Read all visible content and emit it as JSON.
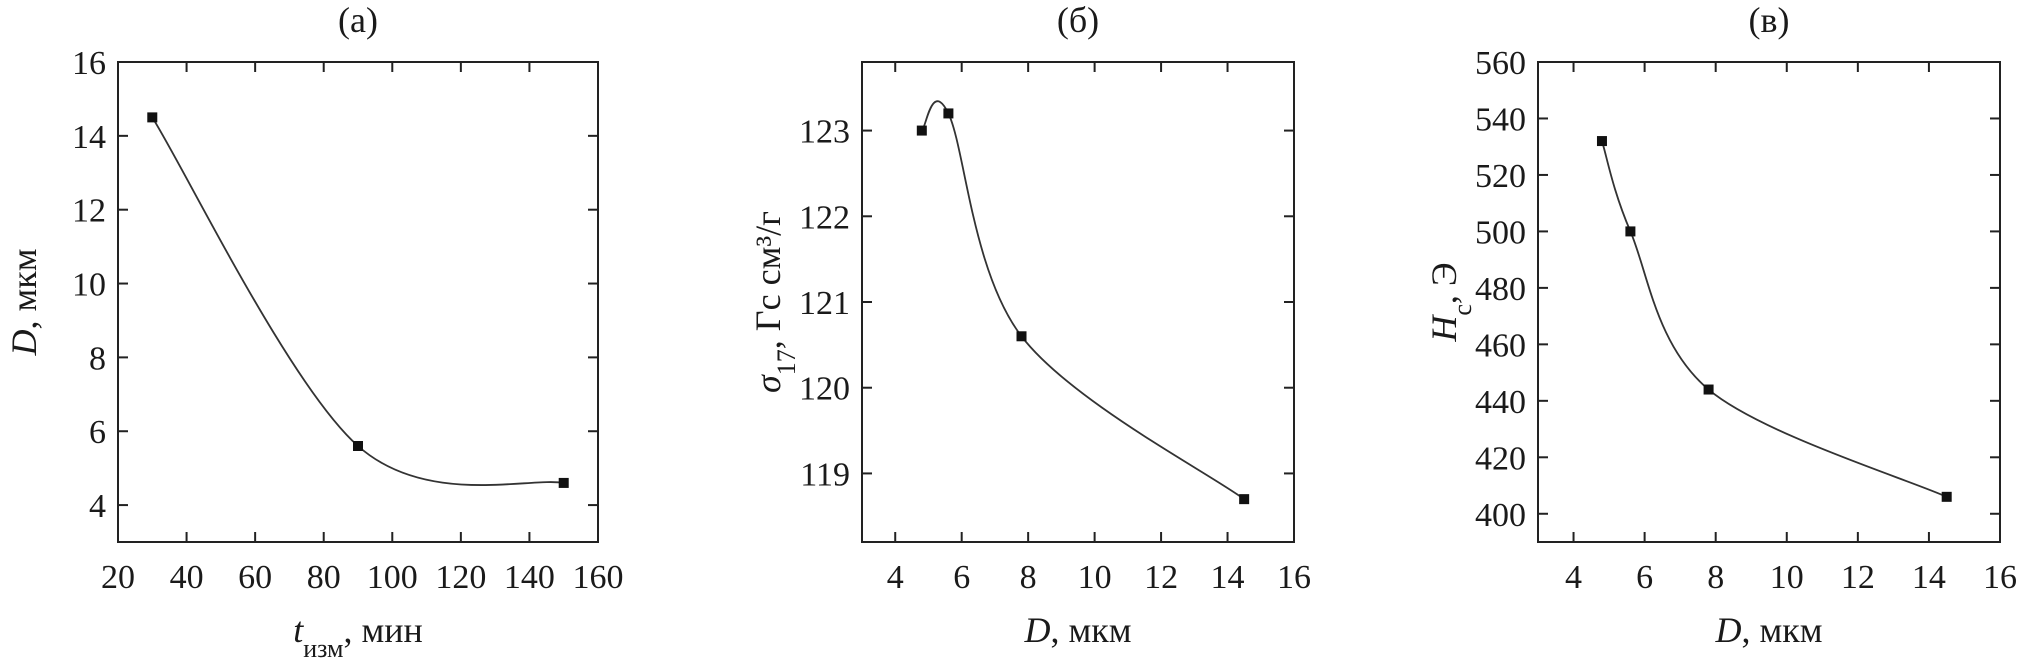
{
  "chart_data": [
    {
      "type": "line",
      "title": "(a)",
      "xlabel": {
        "main": "t",
        "sub": "изм",
        "rest": ", мин"
      },
      "ylabel": {
        "main": "D",
        "sub": "",
        "rest": ", мкм"
      },
      "xlim": [
        20,
        160
      ],
      "ylim": [
        3,
        16
      ],
      "xticks": [
        20,
        40,
        60,
        80,
        100,
        120,
        140,
        160
      ],
      "yticks": [
        4,
        6,
        8,
        10,
        12,
        14,
        16
      ],
      "x": [
        30,
        90,
        150
      ],
      "y": [
        14.5,
        5.6,
        4.6
      ],
      "grid": false
    },
    {
      "type": "line",
      "title": "(б)",
      "xlabel": {
        "main": "D",
        "sub": "",
        "rest": ", мкм"
      },
      "ylabel": {
        "main": "σ",
        "sub": "17",
        "rest": ", Гс см³/г"
      },
      "xlim": [
        3,
        16
      ],
      "ylim": [
        118.2,
        123.8
      ],
      "xticks": [
        4,
        6,
        8,
        10,
        12,
        14,
        16
      ],
      "yticks": [
        119,
        120,
        121,
        122,
        123
      ],
      "x": [
        4.8,
        5.6,
        7.8,
        14.5
      ],
      "y": [
        123.0,
        123.2,
        120.6,
        118.7
      ],
      "grid": false
    },
    {
      "type": "line",
      "title": "(в)",
      "xlabel": {
        "main": "D",
        "sub": "",
        "rest": ", мкм"
      },
      "ylabel": {
        "main": "H",
        "sub": "c",
        "rest": ", Э"
      },
      "xlim": [
        3,
        16
      ],
      "ylim": [
        390,
        560
      ],
      "xticks": [
        4,
        6,
        8,
        10,
        12,
        14,
        16
      ],
      "yticks": [
        400,
        420,
        440,
        460,
        480,
        500,
        520,
        540,
        560
      ],
      "x": [
        4.8,
        5.6,
        7.8,
        14.5
      ],
      "y": [
        532,
        500,
        444,
        406
      ],
      "grid": false
    }
  ]
}
